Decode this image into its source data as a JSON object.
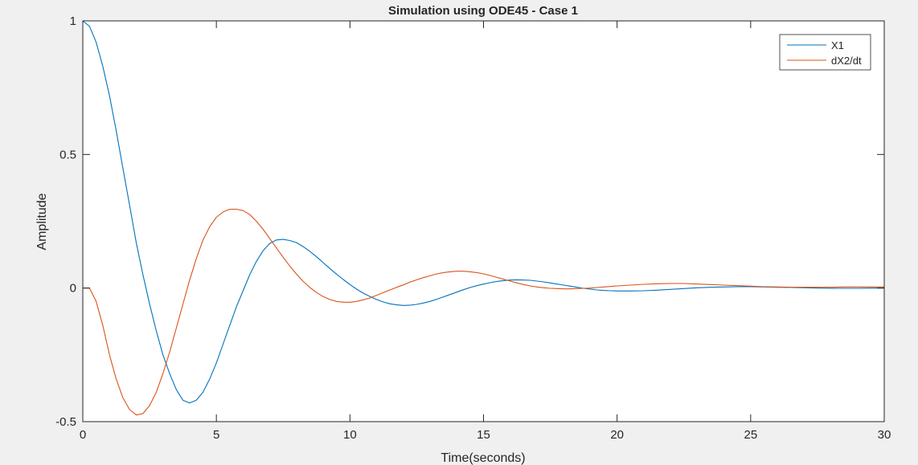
{
  "figure": {
    "background": "#f0f0f0",
    "axes_background": "#ffffff"
  },
  "chart_data": {
    "type": "line",
    "title": "Simulation using ODE45 - Case 1",
    "xlabel": "Time(seconds)",
    "ylabel": "Amplitude",
    "xlim": [
      0,
      30
    ],
    "ylim": [
      -0.5,
      1
    ],
    "xticks": [
      0,
      5,
      10,
      15,
      20,
      25,
      30
    ],
    "xtick_labels": [
      "0",
      "5",
      "10",
      "15",
      "20",
      "25",
      "30"
    ],
    "yticks": [
      -0.5,
      0,
      0.5,
      1
    ],
    "ytick_labels": [
      "-0.5",
      "0",
      "0.5",
      "1"
    ],
    "grid": false,
    "legend_position": "top-right",
    "series": [
      {
        "name": "X1",
        "color": "#0072bd",
        "x": [
          0,
          0.25,
          0.5,
          0.75,
          1,
          1.25,
          1.5,
          1.75,
          2,
          2.25,
          2.5,
          2.75,
          3,
          3.25,
          3.5,
          3.75,
          4,
          4.25,
          4.5,
          4.75,
          5,
          5.25,
          5.5,
          5.75,
          6,
          6.25,
          6.5,
          6.75,
          7,
          7.25,
          7.5,
          7.75,
          8,
          8.25,
          8.5,
          8.75,
          9,
          9.25,
          9.5,
          9.75,
          10,
          10.25,
          10.5,
          10.75,
          11,
          11.25,
          11.5,
          11.75,
          12,
          12.25,
          12.5,
          12.75,
          13,
          13.25,
          13.5,
          13.75,
          14,
          14.25,
          14.5,
          14.75,
          15,
          15.25,
          15.5,
          15.75,
          16,
          16.25,
          16.5,
          16.75,
          17,
          17.25,
          17.5,
          17.75,
          18,
          18.25,
          18.5,
          18.75,
          19,
          19.25,
          19.5,
          19.75,
          20,
          20.5,
          21,
          21.5,
          22,
          22.5,
          23,
          23.5,
          24,
          24.5,
          25,
          25.5,
          26,
          26.5,
          27,
          27.5,
          28,
          28.5,
          29,
          29.5,
          30
        ],
        "y": [
          1.0,
          0.98,
          0.92,
          0.83,
          0.72,
          0.59,
          0.45,
          0.31,
          0.17,
          0.05,
          -0.06,
          -0.16,
          -0.25,
          -0.32,
          -0.38,
          -0.42,
          -0.43,
          -0.42,
          -0.39,
          -0.34,
          -0.28,
          -0.21,
          -0.14,
          -0.07,
          -0.01,
          0.05,
          0.1,
          0.14,
          0.167,
          0.18,
          0.182,
          0.178,
          0.17,
          0.155,
          0.137,
          0.117,
          0.095,
          0.073,
          0.052,
          0.032,
          0.013,
          -0.004,
          -0.019,
          -0.032,
          -0.043,
          -0.052,
          -0.059,
          -0.063,
          -0.065,
          -0.064,
          -0.061,
          -0.056,
          -0.05,
          -0.042,
          -0.033,
          -0.024,
          -0.015,
          -0.006,
          0.002,
          0.009,
          0.015,
          0.02,
          0.025,
          0.028,
          0.03,
          0.031,
          0.03,
          0.029,
          0.026,
          0.023,
          0.019,
          0.015,
          0.011,
          0.007,
          0.003,
          -0.001,
          -0.004,
          -0.007,
          -0.009,
          -0.01,
          -0.011,
          -0.011,
          -0.01,
          -0.008,
          -0.005,
          -0.002,
          0.001,
          0.003,
          0.004,
          0.005,
          0.005,
          0.004,
          0.003,
          0.002,
          0.001,
          0.0,
          -0.001,
          -0.001,
          -0.001,
          -0.0005,
          0.0
        ]
      },
      {
        "name": "dX2/dt",
        "color": "#d95319",
        "x": [
          0,
          0.25,
          0.5,
          0.75,
          1,
          1.25,
          1.5,
          1.75,
          2,
          2.25,
          2.5,
          2.75,
          3,
          3.25,
          3.5,
          3.75,
          4,
          4.25,
          4.5,
          4.75,
          5,
          5.25,
          5.5,
          5.75,
          6,
          6.25,
          6.5,
          6.75,
          7,
          7.25,
          7.5,
          7.75,
          8,
          8.25,
          8.5,
          8.75,
          9,
          9.25,
          9.5,
          9.75,
          10,
          10.25,
          10.5,
          10.75,
          11,
          11.25,
          11.5,
          11.75,
          12,
          12.25,
          12.5,
          12.75,
          13,
          13.25,
          13.5,
          13.75,
          14,
          14.25,
          14.5,
          14.75,
          15,
          15.25,
          15.5,
          15.75,
          16,
          16.25,
          16.5,
          16.75,
          17,
          17.25,
          17.5,
          17.75,
          18,
          18.25,
          18.5,
          18.75,
          19,
          19.25,
          19.5,
          19.75,
          20,
          20.5,
          21,
          21.5,
          22,
          22.5,
          23,
          23.5,
          24,
          24.5,
          25,
          25.5,
          26,
          26.5,
          27,
          27.5,
          28,
          28.5,
          29,
          29.5,
          30
        ],
        "y": [
          0.0,
          0.0,
          -0.05,
          -0.14,
          -0.25,
          -0.34,
          -0.41,
          -0.455,
          -0.475,
          -0.47,
          -0.44,
          -0.39,
          -0.32,
          -0.24,
          -0.15,
          -0.06,
          0.03,
          0.11,
          0.18,
          0.23,
          0.265,
          0.285,
          0.295,
          0.295,
          0.29,
          0.275,
          0.25,
          0.22,
          0.185,
          0.15,
          0.115,
          0.082,
          0.052,
          0.025,
          0.002,
          -0.017,
          -0.032,
          -0.043,
          -0.05,
          -0.053,
          -0.053,
          -0.05,
          -0.044,
          -0.037,
          -0.027,
          -0.017,
          -0.007,
          0.003,
          0.012,
          0.022,
          0.031,
          0.039,
          0.046,
          0.053,
          0.058,
          0.061,
          0.063,
          0.063,
          0.061,
          0.058,
          0.053,
          0.047,
          0.04,
          0.033,
          0.026,
          0.019,
          0.013,
          0.008,
          0.004,
          0.001,
          -0.001,
          -0.002,
          -0.003,
          -0.003,
          -0.002,
          -0.001,
          0.0,
          0.002,
          0.004,
          0.006,
          0.008,
          0.011,
          0.014,
          0.016,
          0.017,
          0.017,
          0.015,
          0.013,
          0.011,
          0.009,
          0.007,
          0.005,
          0.004,
          0.003,
          0.003,
          0.003,
          0.003,
          0.004,
          0.004,
          0.004,
          0.004
        ]
      }
    ]
  }
}
